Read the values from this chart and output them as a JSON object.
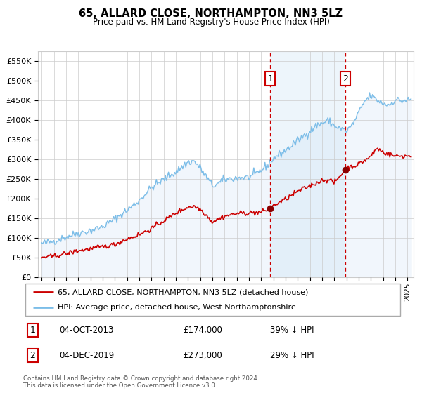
{
  "title": "65, ALLARD CLOSE, NORTHAMPTON, NN3 5LZ",
  "subtitle": "Price paid vs. HM Land Registry's House Price Index (HPI)",
  "legend_line1": "65, ALLARD CLOSE, NORTHAMPTON, NN3 5LZ (detached house)",
  "legend_line2": "HPI: Average price, detached house, West Northamptonshire",
  "annotation1_label": "1",
  "annotation1_date": "04-OCT-2013",
  "annotation1_price": "£174,000",
  "annotation1_hpi": "39% ↓ HPI",
  "annotation1_year": 2013.75,
  "annotation1_value": 174000,
  "annotation2_label": "2",
  "annotation2_date": "04-DEC-2019",
  "annotation2_price": "£273,000",
  "annotation2_hpi": "29% ↓ HPI",
  "annotation2_year": 2019.92,
  "annotation2_value": 273000,
  "hpi_color": "#7bbde8",
  "hpi_fill_color": "#c8dff5",
  "price_color": "#cc0000",
  "shading_color": "#d8eaf8",
  "dashed_line_color": "#cc0000",
  "ylim": [
    0,
    575000
  ],
  "xlim_start": 1994.7,
  "xlim_end": 2025.5,
  "yticks": [
    0,
    50000,
    100000,
    150000,
    200000,
    250000,
    300000,
    350000,
    400000,
    450000,
    500000,
    550000
  ],
  "footer_text": "Contains HM Land Registry data © Crown copyright and database right 2024.\nThis data is licensed under the Open Government Licence v3.0.",
  "background_color": "#ffffff",
  "plot_background": "#ffffff"
}
